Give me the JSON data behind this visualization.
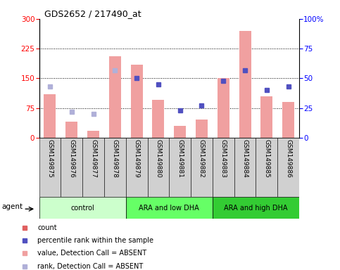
{
  "title": "GDS2652 / 217490_at",
  "samples": [
    "GSM149875",
    "GSM149876",
    "GSM149877",
    "GSM149878",
    "GSM149879",
    "GSM149880",
    "GSM149881",
    "GSM149882",
    "GSM149883",
    "GSM149884",
    "GSM149885",
    "GSM149886"
  ],
  "group_labels": [
    "control",
    "ARA and low DHA",
    "ARA and high DHA"
  ],
  "group_colors": [
    "#ccffcc",
    "#66ff66",
    "#33cc33"
  ],
  "group_starts": [
    0,
    4,
    8
  ],
  "group_ends": [
    4,
    8,
    12
  ],
  "bar_values": [
    110,
    40,
    18,
    205,
    185,
    95,
    30,
    45,
    150,
    270,
    105,
    90
  ],
  "bar_absent": [
    true,
    true,
    true,
    true,
    true,
    true,
    true,
    true,
    true,
    true,
    true,
    true
  ],
  "rank_values": [
    43,
    22,
    20,
    57,
    50,
    45,
    23,
    27,
    48,
    57,
    40,
    43
  ],
  "rank_absent": [
    true,
    true,
    true,
    true,
    false,
    false,
    false,
    false,
    false,
    false,
    false,
    false
  ],
  "left_ylim": [
    0,
    300
  ],
  "right_ylim": [
    0,
    100
  ],
  "left_yticks": [
    0,
    75,
    150,
    225,
    300
  ],
  "right_yticks": [
    0,
    25,
    50,
    75,
    100
  ],
  "bar_color_present": "#e06060",
  "bar_color_absent": "#f0a0a0",
  "rank_color_present": "#5050c0",
  "rank_color_absent": "#b0b0d8",
  "legend_items": [
    {
      "color": "#e06060",
      "label": "count"
    },
    {
      "color": "#5050c0",
      "label": "percentile rank within the sample"
    },
    {
      "color": "#f0a0a0",
      "label": "value, Detection Call = ABSENT"
    },
    {
      "color": "#b0b0d8",
      "label": "rank, Detection Call = ABSENT"
    }
  ],
  "grid_values": [
    75,
    150,
    225
  ],
  "sample_box_color": "#d0d0d0",
  "figure_bg": "#ffffff"
}
